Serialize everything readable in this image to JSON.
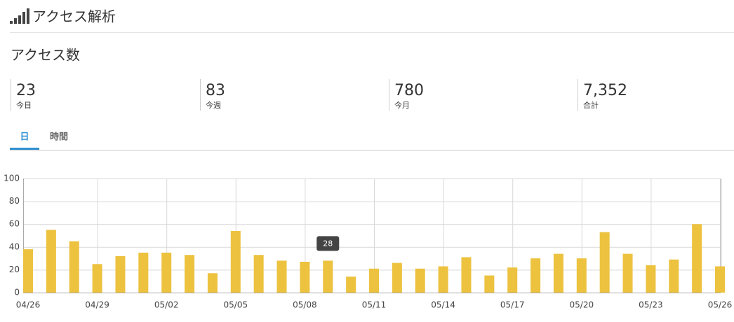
{
  "header": {
    "title": "アクセス解析"
  },
  "section": {
    "title": "アクセス数"
  },
  "stats": [
    {
      "value": 23,
      "label": "今日"
    },
    {
      "value": 83,
      "label": "今週"
    },
    {
      "value": 780,
      "label": "今月"
    },
    {
      "value": "7,352",
      "label": "合計"
    }
  ],
  "tabs": [
    "日",
    "時間"
  ],
  "chart_data": {
    "type": "bar",
    "categories": [
      "04/26",
      null,
      null,
      "04/29",
      null,
      null,
      "05/02",
      null,
      null,
      "05/05",
      null,
      null,
      "05/08",
      null,
      null,
      "05/11",
      null,
      null,
      "05/14",
      null,
      null,
      "05/17",
      null,
      null,
      "05/20",
      null,
      null,
      "05/23",
      null,
      null,
      "05/26"
    ],
    "values": [
      38,
      55,
      45,
      25,
      32,
      35,
      35,
      33,
      17,
      54,
      33,
      28,
      27,
      28,
      14,
      21,
      26,
      21,
      23,
      31,
      15,
      22,
      30,
      34,
      30,
      53,
      34,
      24,
      29,
      60,
      23
    ],
    "color": "#ecc23f",
    "ylim": [
      0,
      100
    ],
    "yticks": [
      0,
      20,
      40,
      60,
      80,
      100
    ],
    "grid": true
  }
}
